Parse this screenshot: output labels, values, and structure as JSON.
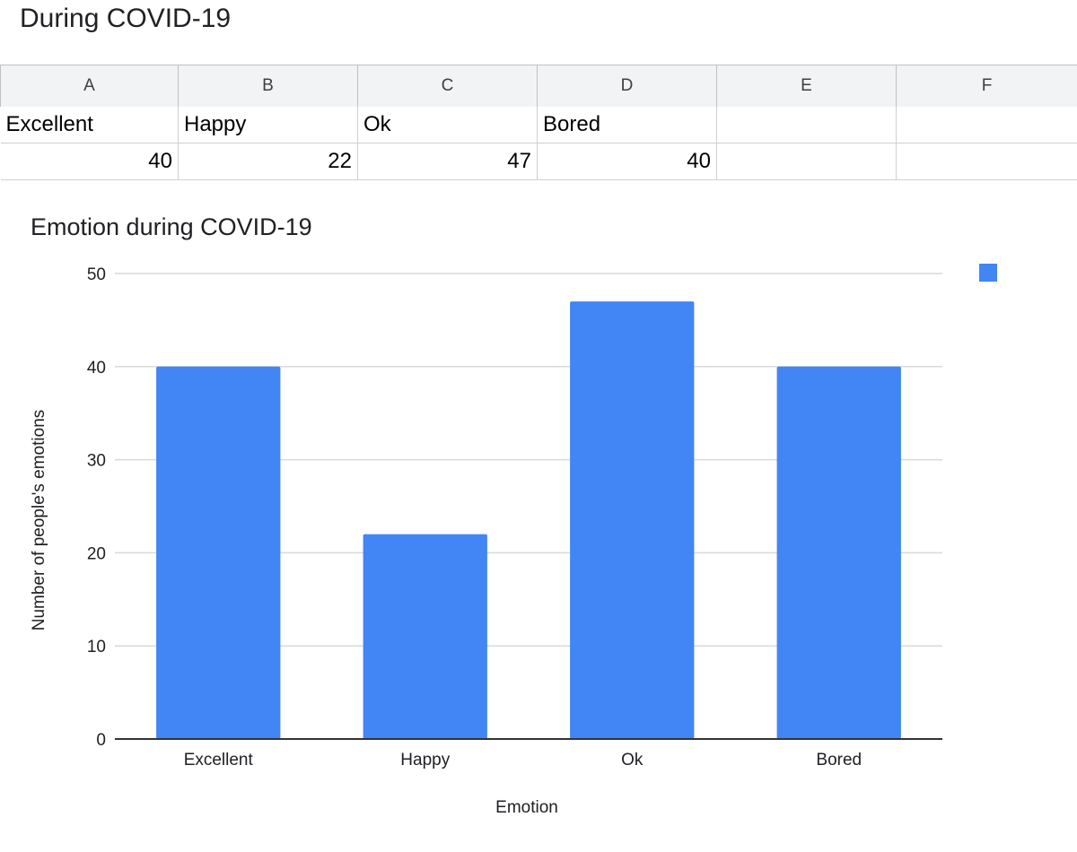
{
  "doc_title": "During COVID-19",
  "sheet": {
    "columns": [
      "A",
      "B",
      "C",
      "D",
      "E",
      "F"
    ],
    "rows": [
      [
        "Excellent",
        "Happy",
        "Ok",
        "Bored",
        "",
        ""
      ],
      [
        "40",
        "22",
        "47",
        "40",
        "",
        ""
      ]
    ]
  },
  "chart_data": {
    "type": "bar",
    "title": "Emotion during COVID-19",
    "xlabel": "Emotion",
    "ylabel": "Number of people's emotions",
    "categories": [
      "Excellent",
      "Happy",
      "Ok",
      "Bored"
    ],
    "values": [
      40,
      22,
      47,
      40
    ],
    "ylim": [
      0,
      50
    ],
    "yticks": [
      0,
      10,
      20,
      30,
      40,
      50
    ],
    "grid": true,
    "legend": "top-right",
    "bar_color": "#4285f4"
  }
}
